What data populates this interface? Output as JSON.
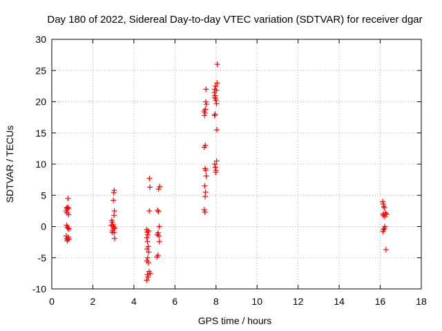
{
  "chart_data": {
    "type": "scatter",
    "title": "Day 180 of 2022, Sidereal Day-to-day VTEC variation (SDTVAR) for receiver dgar",
    "xlabel": "GPS time / hours",
    "ylabel": "SDTVAR / TECUs",
    "xlim": [
      0,
      18
    ],
    "ylim": [
      -10,
      30
    ],
    "x_ticks": [
      "0",
      "2",
      "4",
      "6",
      "8",
      "10",
      "12",
      "14",
      "16",
      "18"
    ],
    "y_ticks": [
      "-10",
      "-5",
      "0",
      "5",
      "10",
      "15",
      "20",
      "25",
      "30"
    ],
    "grid": true,
    "marker": "+",
    "series_color": "#ff0000",
    "series": [
      {
        "name": "SDTVAR",
        "points": [
          [
            0.72,
            3.0
          ],
          [
            0.75,
            2.8
          ],
          [
            0.7,
            2.5
          ],
          [
            0.78,
            3.1
          ],
          [
            0.74,
            2.2
          ],
          [
            0.8,
            2.9
          ],
          [
            0.82,
            1.9
          ],
          [
            0.79,
            4.5
          ],
          [
            0.72,
            0.2
          ],
          [
            0.76,
            -0.1
          ],
          [
            0.8,
            -0.3
          ],
          [
            0.84,
            -0.4
          ],
          [
            0.7,
            -1.5
          ],
          [
            0.73,
            -1.9
          ],
          [
            0.77,
            -2.1
          ],
          [
            0.81,
            -1.7
          ],
          [
            0.75,
            -2.3
          ],
          [
            0.83,
            -2.0
          ],
          [
            2.92,
            1.0
          ],
          [
            2.95,
            0.7
          ],
          [
            2.98,
            0.3
          ],
          [
            3.0,
            0.0
          ],
          [
            3.02,
            -0.3
          ],
          [
            2.96,
            -0.6
          ],
          [
            2.94,
            -0.9
          ],
          [
            3.04,
            -1.0
          ],
          [
            3.06,
            -1.9
          ],
          [
            3.05,
            2.5
          ],
          [
            3.03,
            1.8
          ],
          [
            3.0,
            4.2
          ],
          [
            3.02,
            5.4
          ],
          [
            3.04,
            5.8
          ],
          [
            2.9,
            0.2
          ],
          [
            3.07,
            -0.2
          ],
          [
            4.62,
            -0.5
          ],
          [
            4.65,
            -0.9
          ],
          [
            4.68,
            -1.3
          ],
          [
            4.63,
            -1.8
          ],
          [
            4.66,
            -2.4
          ],
          [
            4.7,
            -3.2
          ],
          [
            4.64,
            -3.6
          ],
          [
            4.72,
            -4.1
          ],
          [
            4.67,
            -5.0
          ],
          [
            4.63,
            -5.5
          ],
          [
            4.71,
            -5.8
          ],
          [
            4.74,
            -7.2
          ],
          [
            4.66,
            -7.7
          ],
          [
            4.69,
            -8.1
          ],
          [
            4.62,
            -8.6
          ],
          [
            4.75,
            2.5
          ],
          [
            4.78,
            6.3
          ],
          [
            4.76,
            7.7
          ],
          [
            4.8,
            -7.5
          ],
          [
            4.71,
            -0.7
          ],
          [
            5.15,
            2.6
          ],
          [
            5.2,
            2.4
          ],
          [
            5.18,
            -1.0
          ],
          [
            5.22,
            -1.5
          ],
          [
            5.24,
            -2.4
          ],
          [
            5.12,
            -4.9
          ],
          [
            5.17,
            -4.6
          ],
          [
            5.23,
            0.0
          ],
          [
            5.2,
            6.0
          ],
          [
            5.26,
            6.4
          ],
          [
            5.14,
            -1.3
          ],
          [
            7.42,
            18.5
          ],
          [
            7.46,
            18.2
          ],
          [
            7.44,
            17.8
          ],
          [
            7.48,
            13.0
          ],
          [
            7.43,
            12.7
          ],
          [
            7.47,
            9.3
          ],
          [
            7.5,
            9.0
          ],
          [
            7.52,
            8.1
          ],
          [
            7.45,
            6.5
          ],
          [
            7.49,
            5.5
          ],
          [
            7.47,
            4.8
          ],
          [
            7.43,
            2.7
          ],
          [
            7.46,
            2.3
          ],
          [
            7.5,
            20.0
          ],
          [
            7.53,
            19.6
          ],
          [
            7.51,
            22.0
          ],
          [
            7.48,
            18.8
          ],
          [
            7.92,
            21.5
          ],
          [
            7.95,
            21.0
          ],
          [
            7.97,
            20.5
          ],
          [
            8.0,
            20.2
          ],
          [
            7.94,
            22.0
          ],
          [
            7.98,
            22.5
          ],
          [
            8.02,
            21.8
          ],
          [
            7.96,
            18.0
          ],
          [
            7.93,
            17.8
          ],
          [
            8.04,
            15.5
          ],
          [
            8.05,
            23.0
          ],
          [
            8.06,
            26.0
          ],
          [
            7.94,
            10.0
          ],
          [
            7.97,
            9.5
          ],
          [
            8.0,
            9.0
          ],
          [
            8.03,
            10.5
          ],
          [
            7.99,
            8.7
          ],
          [
            7.95,
            20.7
          ],
          [
            8.02,
            19.7
          ],
          [
            16.12,
            4.0
          ],
          [
            16.15,
            3.6
          ],
          [
            16.18,
            3.2
          ],
          [
            16.2,
            3.0
          ],
          [
            16.14,
            2.0
          ],
          [
            16.16,
            1.8
          ],
          [
            16.22,
            1.6
          ],
          [
            16.25,
            2.2
          ],
          [
            16.23,
            0.0
          ],
          [
            16.17,
            -0.5
          ],
          [
            16.13,
            -0.8
          ],
          [
            16.2,
            -0.3
          ],
          [
            16.28,
            -3.7
          ],
          [
            16.3,
            2.0
          ]
        ]
      }
    ]
  }
}
